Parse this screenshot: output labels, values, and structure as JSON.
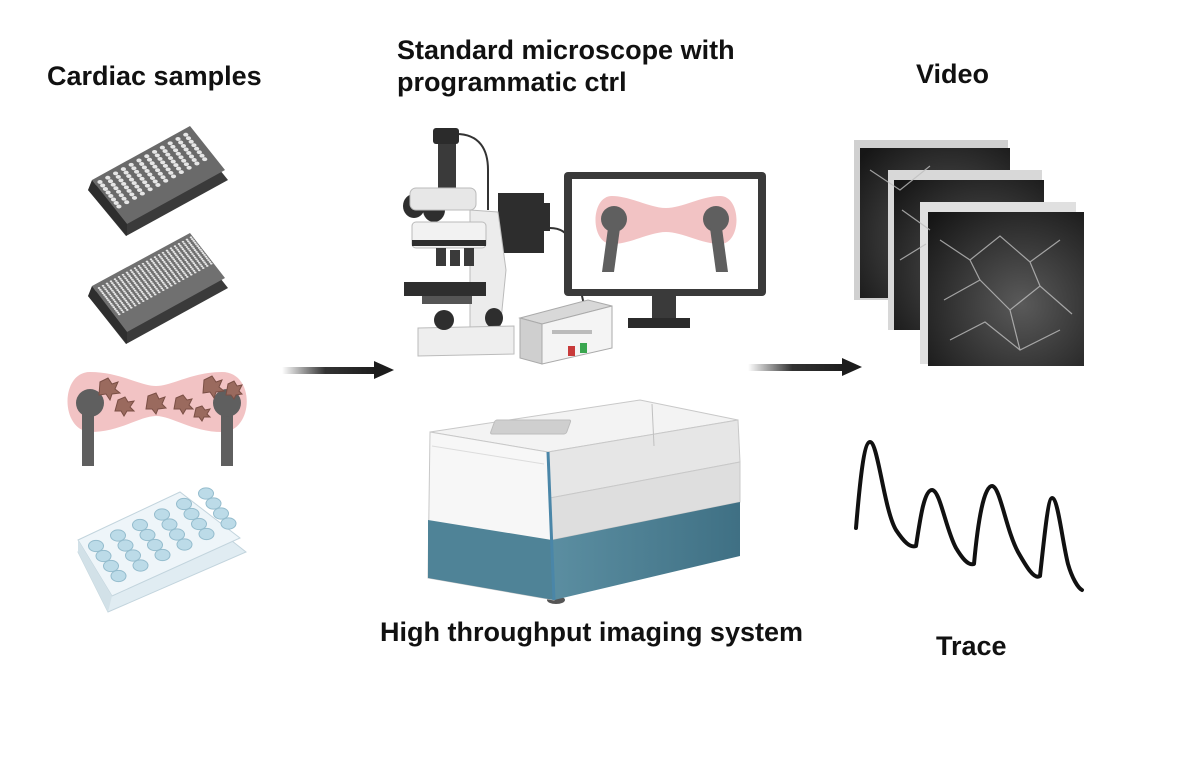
{
  "labels": {
    "samples": "Cardiac samples",
    "microscope_line1": "Standard microscope with",
    "microscope_line2": "programmatic ctrl",
    "video": "Video",
    "imaging_system": "High throughput imaging system",
    "trace": "Trace"
  },
  "colors": {
    "tissue_pink": "#f2c3c4",
    "post_gray": "#5f5f5f",
    "imager_teal": "#4f8397",
    "arrow_black": "#1c1c1c"
  },
  "icons": [
    "96-well-plate-icon",
    "384-well-plate-icon",
    "engineered-heart-tissue-icon",
    "24-well-plate-icon",
    "microscope-icon",
    "monitor-icon",
    "controller-box-icon",
    "imaging-system-icon",
    "video-frames-icon",
    "calcium-trace-icon"
  ]
}
